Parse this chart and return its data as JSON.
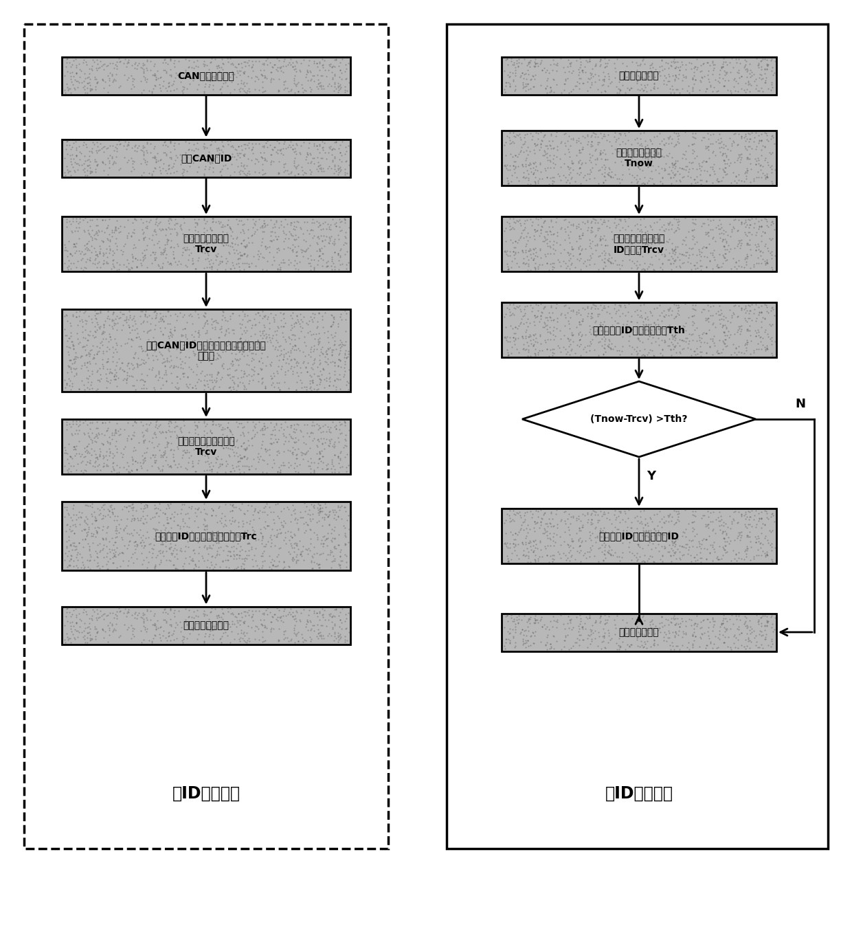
{
  "left_title": "帧ID增加方法",
  "right_title": "帧ID删除方法",
  "left_texts": [
    "CAN接收中断入口",
    "读取CAN帧ID",
    "读取当前系统时间\nTrcv",
    "根据CAN帧ID的大小，找到大于当前时间\n的位置",
    "更新该位置元素时间为\nTrcv",
    "保存最新ID的时间戳信息至内存Trc",
    "退出接收中断程序"
  ],
  "right_texts": [
    "定时器中断入口",
    "获取当前系统时间\nTnow",
    "获取最早接收时间戳\nID该时间Trcv",
    "计算消除帧ID时间间隔阈値Tth",
    "(Tnow-Trcv)>Tth?",
    "删除对应ID位，更新内存ID",
    "退出定时器程序"
  ],
  "bg_color": "#ffffff",
  "box_fill": "#b8b8b8",
  "box_edge": "#000000",
  "diamond_fill": "#ffffff",
  "arrow_color": "#000000"
}
